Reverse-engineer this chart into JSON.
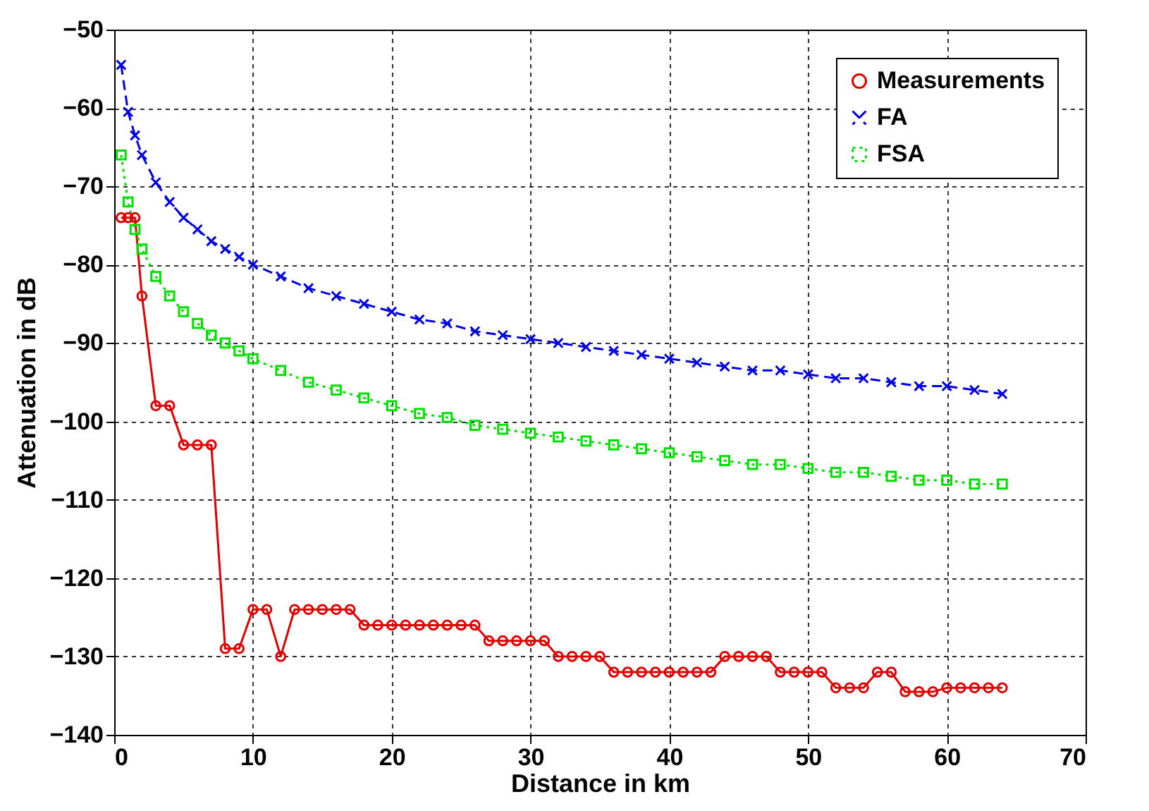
{
  "chart_data": {
    "type": "line",
    "xlabel": "Distance in km",
    "ylabel": "Attenuation in dB",
    "xlim": [
      0,
      70
    ],
    "xticks": [
      0,
      10,
      20,
      30,
      40,
      50,
      60,
      70
    ],
    "ylim": [
      -140,
      -50
    ],
    "yticks": [
      -140,
      -130,
      -120,
      -110,
      -100,
      -90,
      -80,
      -70,
      -60,
      -50
    ],
    "grid": true,
    "legend": "top right",
    "series": [
      {
        "name": "Measurements",
        "color": "#e00000",
        "marker": "circle",
        "line_style": "solid",
        "x": [
          0.5,
          1,
          1.5,
          2,
          3,
          4,
          5,
          6,
          7,
          8,
          9,
          10,
          11,
          12,
          13,
          14,
          15,
          16,
          17,
          18,
          19,
          20,
          21,
          22,
          23,
          24,
          25,
          26,
          27,
          28,
          29,
          30,
          31,
          32,
          33,
          34,
          35,
          36,
          37,
          38,
          39,
          40,
          41,
          42,
          43,
          44,
          45,
          46,
          47,
          48,
          49,
          50,
          51,
          52,
          53,
          54,
          55,
          56,
          57,
          58,
          59,
          60,
          61,
          62,
          63,
          64
        ],
        "values": [
          -74,
          -74,
          -74,
          -84,
          -98,
          -98,
          -103,
          -103,
          -103,
          -129,
          -129,
          -124,
          -124,
          -130,
          -124,
          -124,
          -124,
          -124,
          -124,
          -126,
          -126,
          -126,
          -126,
          -126,
          -126,
          -126,
          -126,
          -126,
          -128,
          -128,
          -128,
          -128,
          -128,
          -130,
          -130,
          -130,
          -130,
          -132,
          -132,
          -132,
          -132,
          -132,
          -132,
          -132,
          -132,
          -130,
          -130,
          -130,
          -130,
          -132,
          -132,
          -132,
          -132,
          -134,
          -134,
          -134,
          -132,
          -132,
          -134.5,
          -134.5,
          -134.5,
          -134,
          -134,
          -134,
          -134,
          -134
        ]
      },
      {
        "name": "FA",
        "color": "#0000e0",
        "marker": "cross",
        "line_style": "dashed",
        "x": [
          0.5,
          1,
          1.5,
          2,
          3,
          4,
          5,
          6,
          7,
          8,
          9,
          10,
          12,
          14,
          16,
          18,
          20,
          22,
          24,
          26,
          28,
          30,
          32,
          34,
          36,
          38,
          40,
          42,
          44,
          46,
          48,
          50,
          52,
          54,
          56,
          58,
          60,
          62,
          64
        ],
        "values": [
          -54.5,
          -60.5,
          -63.5,
          -66,
          -69.5,
          -72,
          -74,
          -75.5,
          -77,
          -78,
          -79,
          -80,
          -81.5,
          -83,
          -84,
          -85,
          -86,
          -87,
          -87.5,
          -88.5,
          -89,
          -89.5,
          -90,
          -90.5,
          -91,
          -91.5,
          -92,
          -92.5,
          -93,
          -93.5,
          -93.5,
          -94,
          -94.5,
          -94.5,
          -95,
          -95.5,
          -95.5,
          -96,
          -96.5
        ]
      },
      {
        "name": "FSA",
        "color": "#00e000",
        "marker": "square",
        "line_style": "dotted",
        "x": [
          0.5,
          1,
          1.5,
          2,
          3,
          4,
          5,
          6,
          7,
          8,
          9,
          10,
          12,
          14,
          16,
          18,
          20,
          22,
          24,
          26,
          28,
          30,
          32,
          34,
          36,
          38,
          40,
          42,
          44,
          46,
          48,
          50,
          52,
          54,
          56,
          58,
          60,
          62,
          64
        ],
        "values": [
          -66,
          -72,
          -75.5,
          -78,
          -81.5,
          -84,
          -86,
          -87.5,
          -89,
          -90,
          -91,
          -92,
          -93.5,
          -95,
          -96,
          -97,
          -98,
          -99,
          -99.5,
          -100.5,
          -101,
          -101.5,
          -102,
          -102.5,
          -103,
          -103.5,
          -104,
          -104.5,
          -105,
          -105.5,
          -105.5,
          -106,
          -106.5,
          -106.5,
          -107,
          -107.5,
          -107.5,
          -108,
          -108
        ]
      }
    ]
  }
}
